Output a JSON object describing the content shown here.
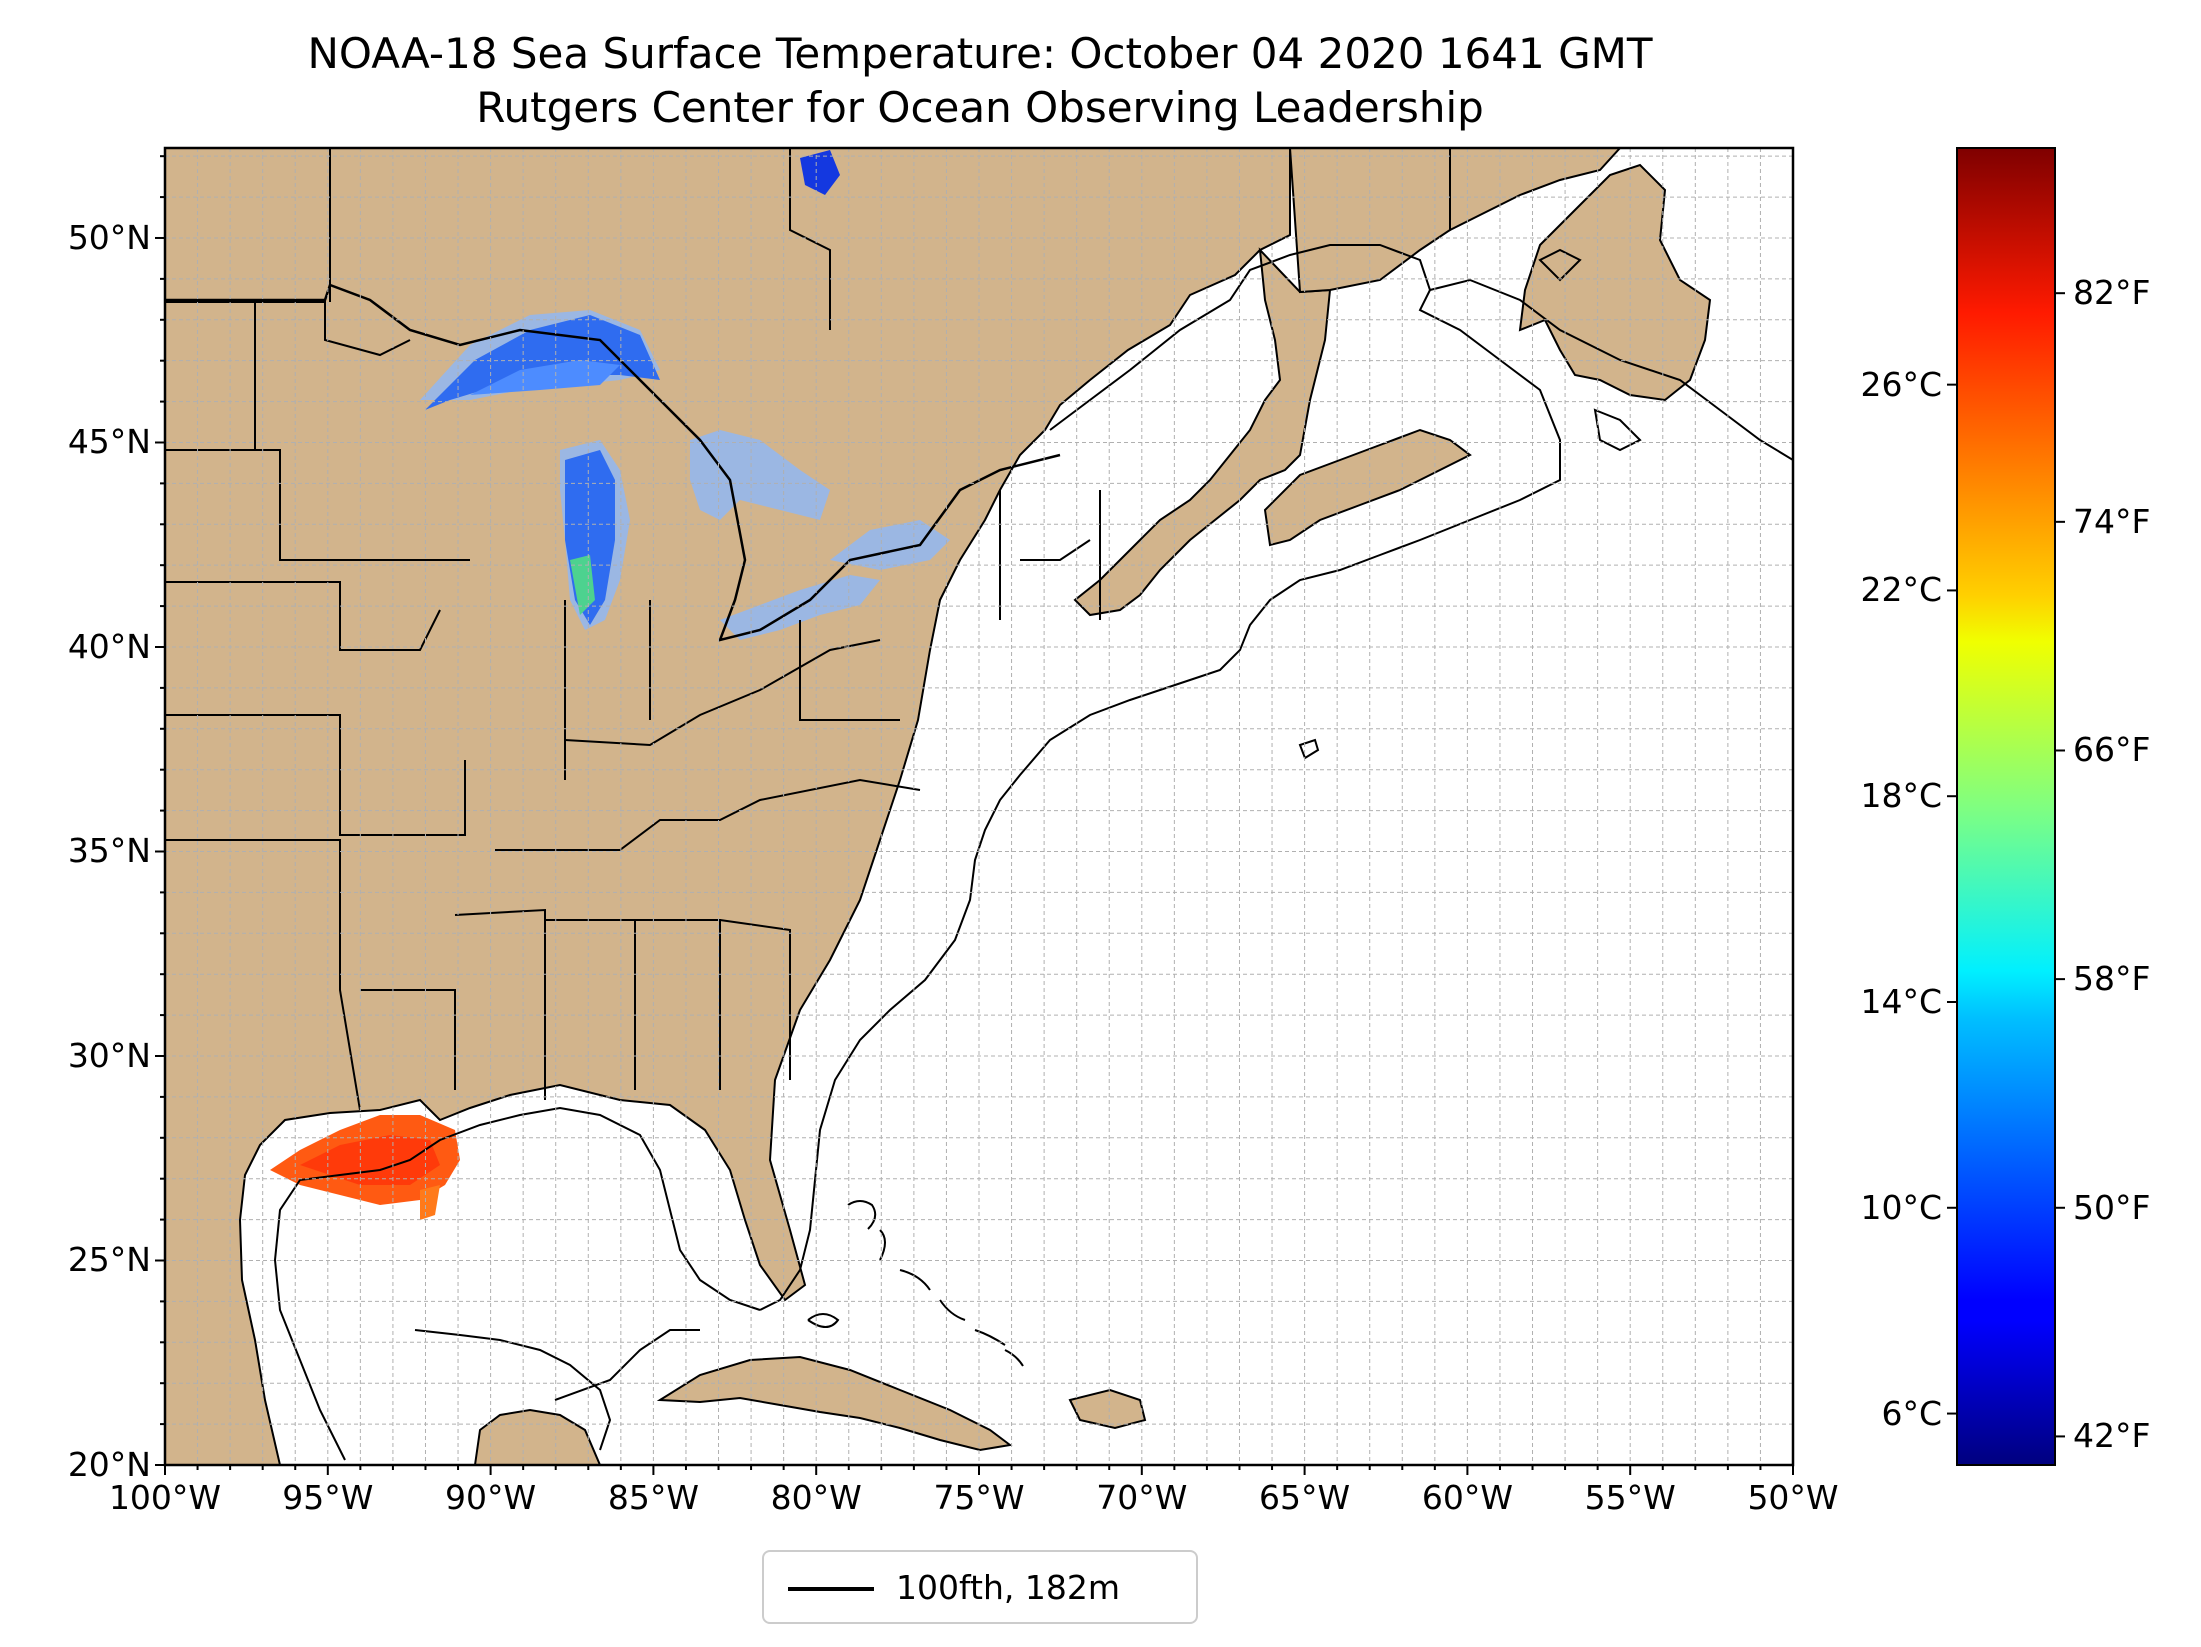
{
  "title": {
    "line1": "NOAA-18 Sea Surface Temperature: October 04 2020 1641 GMT",
    "line2": "Rutgers Center for Ocean Observing Leadership"
  },
  "map": {
    "lon_range": [
      -100,
      -50
    ],
    "lat_range": [
      20,
      52.2
    ],
    "grid": true,
    "lat_ticks": [
      {
        "value": 50,
        "label": "50°N"
      },
      {
        "value": 45,
        "label": "45°N"
      },
      {
        "value": 40,
        "label": "40°N"
      },
      {
        "value": 35,
        "label": "35°N"
      },
      {
        "value": 30,
        "label": "30°N"
      },
      {
        "value": 25,
        "label": "25°N"
      },
      {
        "value": 20,
        "label": "20°N"
      }
    ],
    "lon_ticks": [
      {
        "value": -100,
        "label": "100°W"
      },
      {
        "value": -95,
        "label": "95°W"
      },
      {
        "value": -90,
        "label": "90°W"
      },
      {
        "value": -85,
        "label": "85°W"
      },
      {
        "value": -80,
        "label": "80°W"
      },
      {
        "value": -75,
        "label": "75°W"
      },
      {
        "value": -70,
        "label": "70°W"
      },
      {
        "value": -65,
        "label": "65°W"
      },
      {
        "value": -60,
        "label": "60°W"
      },
      {
        "value": -55,
        "label": "55°W"
      },
      {
        "value": -50,
        "label": "50°W"
      }
    ],
    "colors": {
      "land": "#d2b48c",
      "lake": "#9bb7e3",
      "ocean": "#ffffff",
      "grid": "#b0b0b0"
    },
    "legend": {
      "label": "100fth, 182m",
      "placement": "bottom-center"
    }
  },
  "colorbar": {
    "colormap": "jet",
    "range_c": [
      5,
      30.6
    ],
    "celsius_ticks": [
      {
        "value": 26,
        "label": "26°C"
      },
      {
        "value": 22,
        "label": "22°C"
      },
      {
        "value": 18,
        "label": "18°C"
      },
      {
        "value": 14,
        "label": "14°C"
      },
      {
        "value": 10,
        "label": "10°C"
      },
      {
        "value": 6,
        "label": "6°C"
      }
    ],
    "fahrenheit_ticks": [
      {
        "value": 82,
        "label": "82°F"
      },
      {
        "value": 74,
        "label": "74°F"
      },
      {
        "value": 66,
        "label": "66°F"
      },
      {
        "value": 58,
        "label": "58°F"
      },
      {
        "value": 50,
        "label": "50°F"
      },
      {
        "value": 42,
        "label": "42°F"
      }
    ]
  }
}
